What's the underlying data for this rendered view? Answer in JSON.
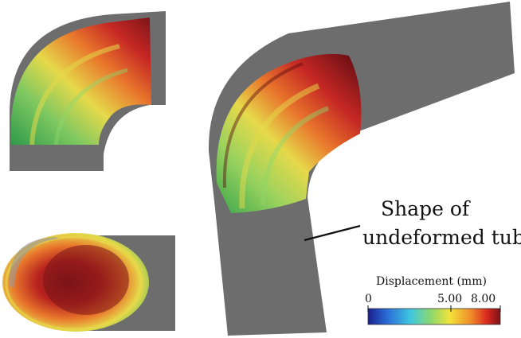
{
  "annotation": {
    "line1": "Shape of",
    "line2": "undeformed tube"
  },
  "colorbar": {
    "title": "Displacement (mm)",
    "ticks": [
      "0",
      "5.00",
      "8.00"
    ],
    "min": 0,
    "max": 8,
    "colors": [
      "#1a1f8f",
      "#2a6fd6",
      "#3fc7e0",
      "#8fd86a",
      "#f2e23a",
      "#f08a2a",
      "#d8281e",
      "#7a1218"
    ]
  },
  "colors": {
    "tube_gray": "#6d6d6d",
    "deep_red": "#7a1418",
    "red": "#c62824",
    "orange": "#e8762c",
    "yellow": "#e6d94a",
    "green": "#7fc860",
    "dark_green": "#2f9a4a"
  }
}
